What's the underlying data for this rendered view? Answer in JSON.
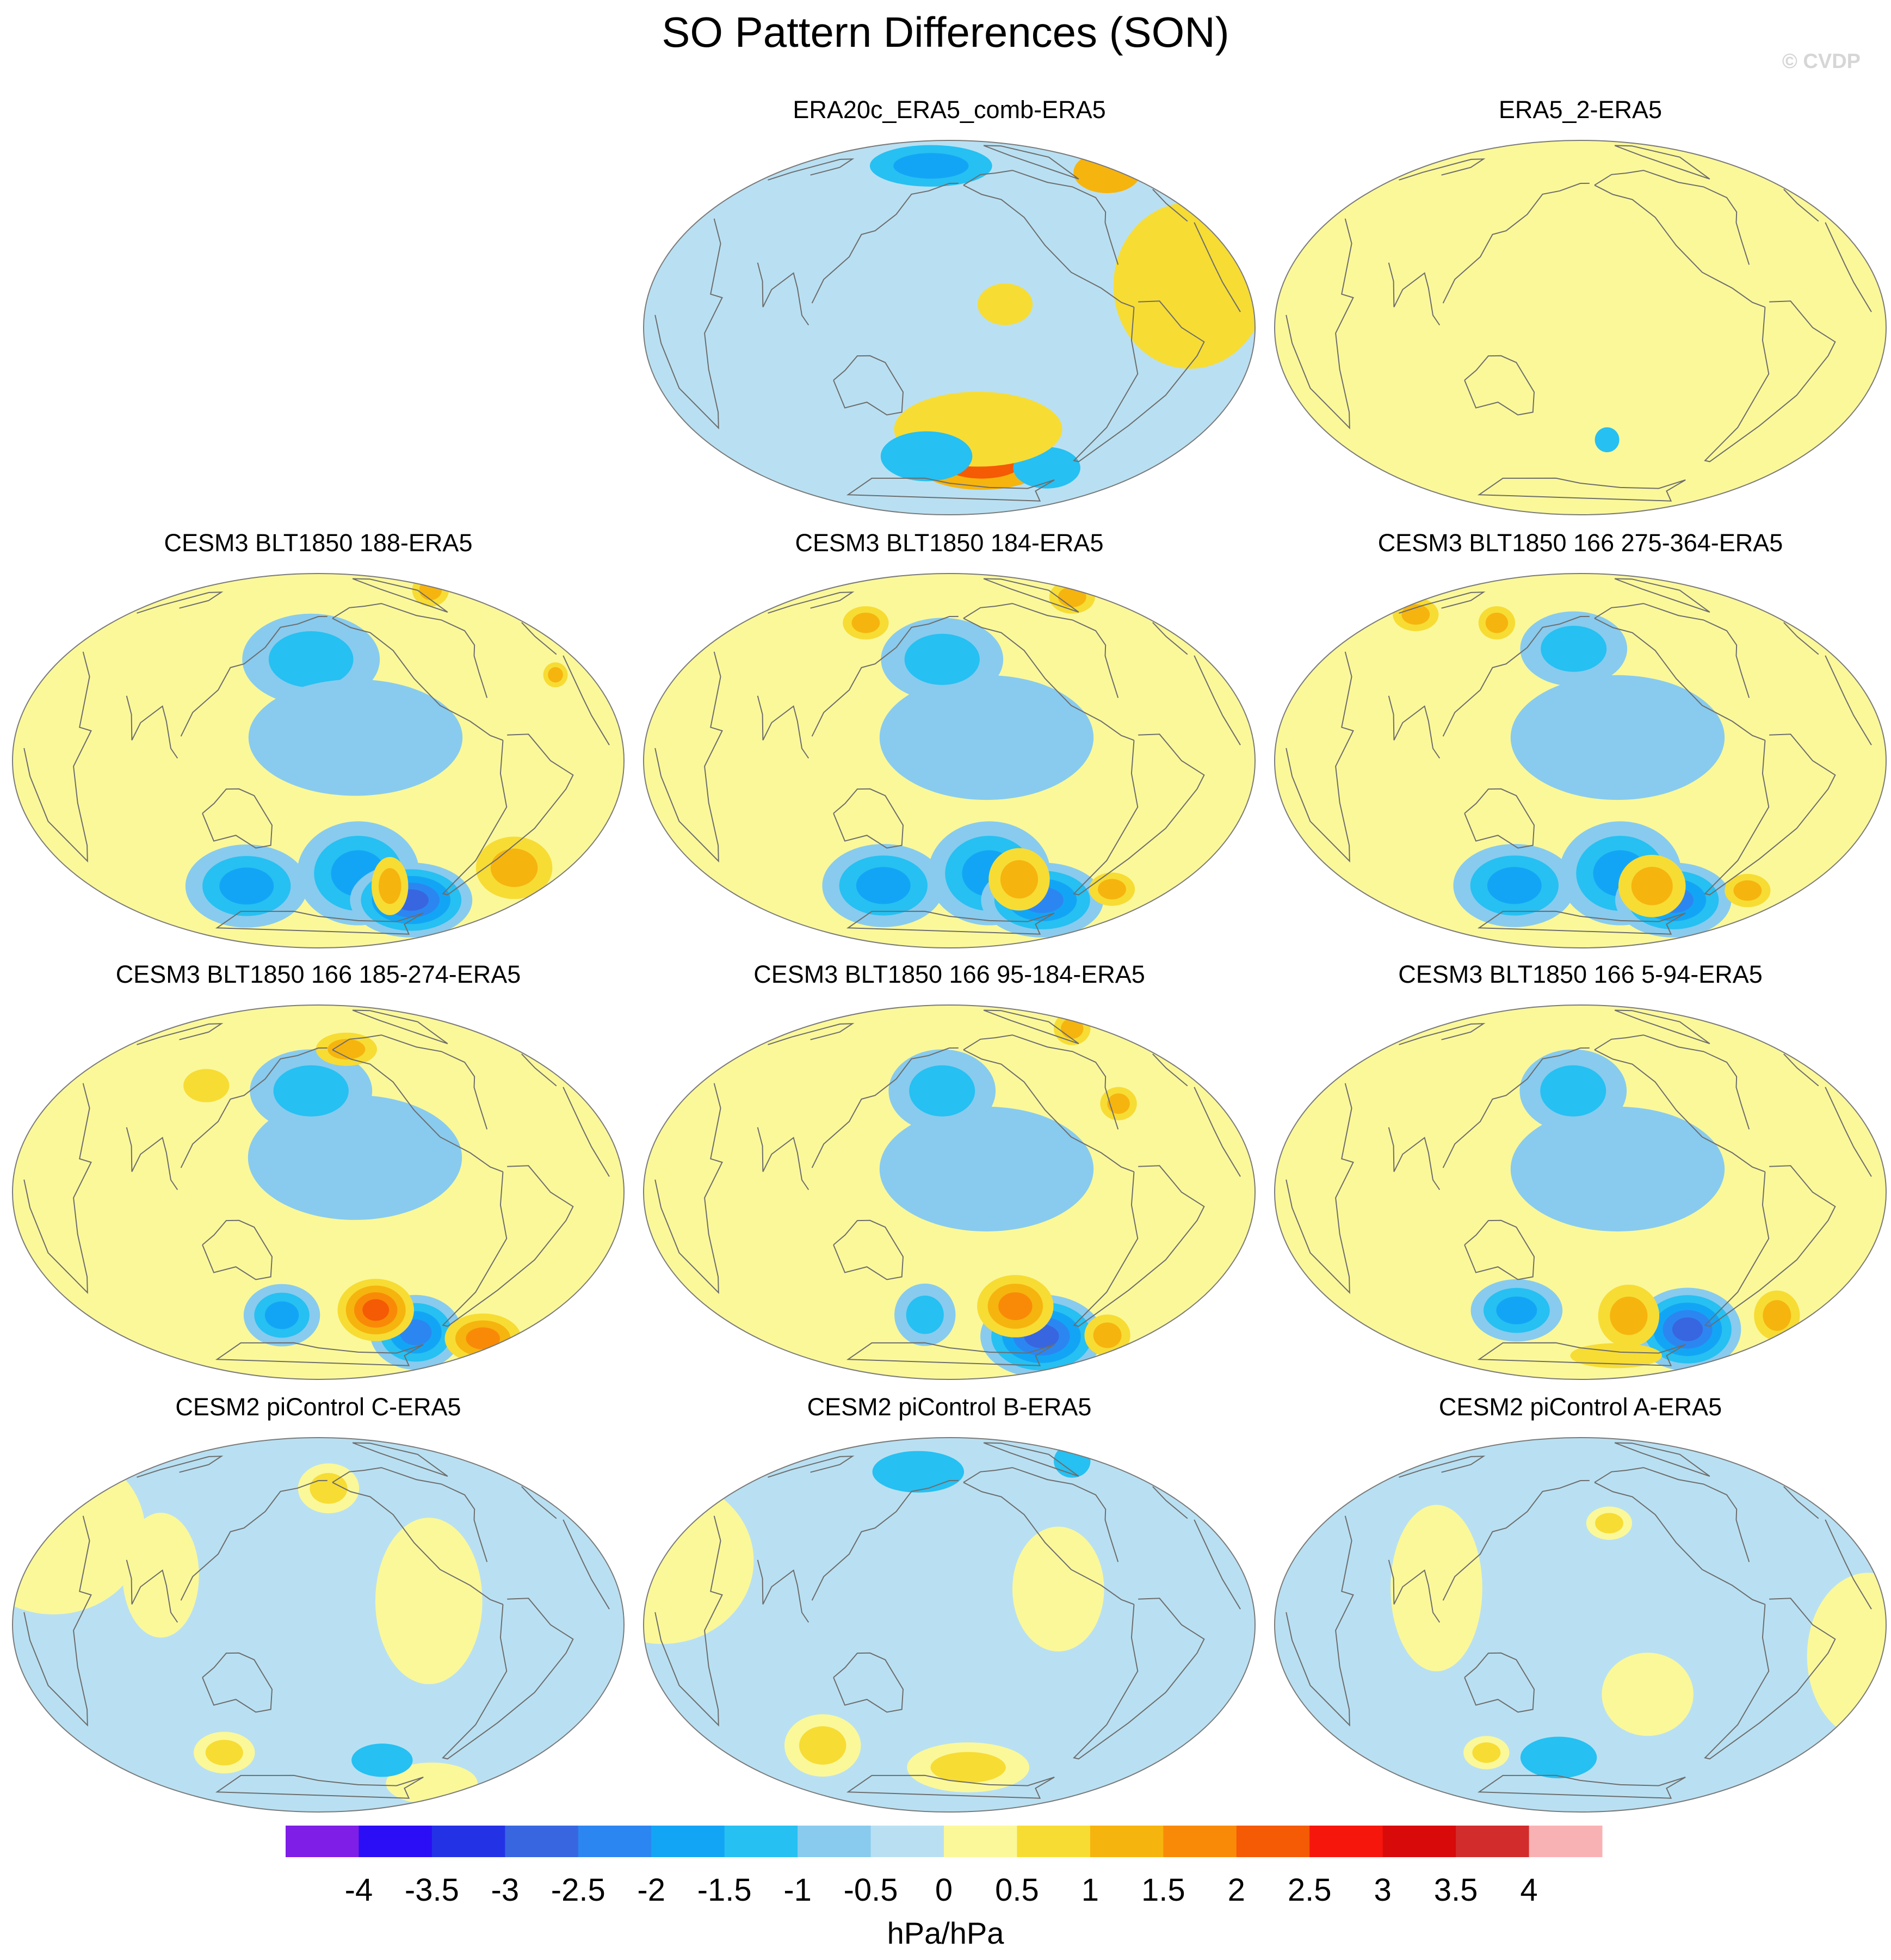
{
  "figure": {
    "title": "SO Pattern Differences (SON)",
    "watermark": "© CVDP",
    "units": "hPa/hPa"
  },
  "colors": {
    "scale": [
      "#7f1ee6",
      "#2b0ef5",
      "#2432e6",
      "#3866e0",
      "#2c86f2",
      "#13a5f5",
      "#26c0f2",
      "#88cbee",
      "#b9e0f2",
      "#fbf89a",
      "#f7dc34",
      "#f6b40e",
      "#f98a07",
      "#f55a05",
      "#f6160c",
      "#d80a0a",
      "#d22c2c",
      "#f9b2b4"
    ],
    "coast": "#6d6d6d"
  },
  "colorbar": {
    "ticks": [
      "-4",
      "-3.5",
      "-3",
      "-2.5",
      "-2",
      "-1.5",
      "-1",
      "-0.5",
      "0",
      "0.5",
      "1",
      "1.5",
      "2",
      "2.5",
      "3",
      "3.5",
      "4"
    ]
  },
  "panels": [
    {
      "title": "ERA20c_ERA5_comb-ERA5",
      "base": 8,
      "features": [
        {
          "lon": -150,
          "lat": -60,
          "rx": 45,
          "ry": 14,
          "levels": [
            1,
            2
          ]
        },
        {
          "lon": -85,
          "lat": -60,
          "rx": 22,
          "ry": 10,
          "levels": [
            -1
          ]
        },
        {
          "lon": -10,
          "lat": 58,
          "rx": 22,
          "ry": 10,
          "levels": [
            1
          ]
        },
        {
          "lon": 150,
          "lat": 75,
          "rx": 40,
          "ry": 10,
          "levels": [
            -1,
            -1.5
          ]
        },
        {
          "lon": -40,
          "lat": 15,
          "rx": 50,
          "ry": 40,
          "levels": [
            0.5
          ]
        },
        {
          "lon": -150,
          "lat": 10,
          "rx": 18,
          "ry": 10,
          "levels": [
            0.5
          ]
        },
        {
          "lon": -160,
          "lat": -45,
          "rx": 55,
          "ry": 18,
          "levels": [
            0.5
          ]
        },
        {
          "lon": 160,
          "lat": -58,
          "rx": 30,
          "ry": 12,
          "levels": [
            -1
          ]
        }
      ]
    },
    {
      "title": "ERA5_2-ERA5",
      "base": 9,
      "features": [
        {
          "lon": -130,
          "lat": -15,
          "rx": 45,
          "ry": 40,
          "levels": [
            0
          ]
        },
        {
          "lon": -60,
          "lat": 40,
          "rx": 35,
          "ry": 20,
          "levels": [
            0
          ]
        },
        {
          "lon": 130,
          "lat": 15,
          "rx": 30,
          "ry": 20,
          "levels": [
            0
          ]
        },
        {
          "lon": 30,
          "lat": -55,
          "rx": 50,
          "ry": 15,
          "levels": [
            0
          ]
        },
        {
          "lon": -160,
          "lat": -50,
          "rx": 8,
          "ry": 6,
          "levels": [
            -1
          ]
        },
        {
          "lon": 0,
          "lat": 40,
          "rx": 25,
          "ry": 20,
          "levels": [
            0
          ]
        }
      ]
    },
    {
      "title": "CESM3 BLT1850 188-ERA5",
      "base": 9,
      "features": [
        {
          "lon": -150,
          "lat": -50,
          "rx": 40,
          "ry": 25,
          "levels": [
            -0.5,
            -1,
            -1.5
          ]
        },
        {
          "lon": -90,
          "lat": -60,
          "rx": 40,
          "ry": 18,
          "levels": [
            -0.5,
            -1,
            -1.5,
            -2,
            -2.5
          ]
        },
        {
          "lon": 120,
          "lat": -55,
          "rx": 40,
          "ry": 20,
          "levels": [
            -0.5,
            -1,
            -1.5
          ]
        },
        {
          "lon": -120,
          "lat": -55,
          "rx": 12,
          "ry": 14,
          "levels": [
            0.5,
            1
          ]
        },
        {
          "lon": -40,
          "lat": -40,
          "rx": 25,
          "ry": 15,
          "levels": [
            0.5,
            1
          ]
        },
        {
          "lon": -10,
          "lat": 68,
          "rx": 12,
          "ry": 8,
          "levels": [
            0.5,
            1
          ]
        },
        {
          "lon": -25,
          "lat": 30,
          "rx": 8,
          "ry": 6,
          "levels": [
            0.5,
            1
          ]
        },
        {
          "lon": 175,
          "lat": 45,
          "rx": 45,
          "ry": 22,
          "levels": [
            -0.5,
            -1
          ]
        },
        {
          "lon": -160,
          "lat": 10,
          "rx": 70,
          "ry": 28,
          "levels": [
            -0.5
          ]
        }
      ]
    },
    {
      "title": "CESM3 BLT1850 184-ERA5",
      "base": 9,
      "features": [
        {
          "lon": -160,
          "lat": 10,
          "rx": 70,
          "ry": 30,
          "levels": [
            -0.5
          ]
        },
        {
          "lon": 175,
          "lat": 45,
          "rx": 40,
          "ry": 20,
          "levels": [
            -0.5,
            -1
          ]
        },
        {
          "lon": -150,
          "lat": -50,
          "rx": 40,
          "ry": 25,
          "levels": [
            -0.5,
            -1,
            -1.5
          ]
        },
        {
          "lon": -90,
          "lat": -60,
          "rx": 40,
          "ry": 18,
          "levels": [
            -0.5,
            -1,
            -1.5,
            -2
          ]
        },
        {
          "lon": 125,
          "lat": -55,
          "rx": 40,
          "ry": 20,
          "levels": [
            -0.5,
            -1,
            -1.5
          ]
        },
        {
          "lon": -125,
          "lat": -52,
          "rx": 20,
          "ry": 15,
          "levels": [
            0.5,
            1
          ]
        },
        {
          "lon": -45,
          "lat": -50,
          "rx": 15,
          "ry": 8,
          "levels": [
            0.5,
            1
          ]
        },
        {
          "lon": -20,
          "lat": 65,
          "rx": 15,
          "ry": 8,
          "levels": [
            0.5,
            1
          ]
        },
        {
          "lon": 100,
          "lat": 60,
          "rx": 15,
          "ry": 8,
          "levels": [
            0.5,
            1
          ]
        }
      ]
    },
    {
      "title": "CESM3 BLT1850 166 275-364-ERA5",
      "base": 9,
      "features": [
        {
          "lon": -160,
          "lat": 10,
          "rx": 70,
          "ry": 30,
          "levels": [
            -0.5
          ]
        },
        {
          "lon": 175,
          "lat": 50,
          "rx": 35,
          "ry": 18,
          "levels": [
            -0.5,
            -1
          ]
        },
        {
          "lon": -150,
          "lat": -50,
          "rx": 40,
          "ry": 25,
          "levels": [
            -0.5,
            -1,
            -1.5
          ]
        },
        {
          "lon": -90,
          "lat": -60,
          "rx": 38,
          "ry": 18,
          "levels": [
            -0.5,
            -1,
            -1.5,
            -2
          ]
        },
        {
          "lon": 125,
          "lat": -55,
          "rx": 40,
          "ry": 20,
          "levels": [
            -0.5,
            -1,
            -1.5
          ]
        },
        {
          "lon": -120,
          "lat": -55,
          "rx": 22,
          "ry": 15,
          "levels": [
            0.5,
            1
          ]
        },
        {
          "lon": -40,
          "lat": -50,
          "rx": 15,
          "ry": 8,
          "levels": [
            0.5,
            1
          ]
        },
        {
          "lon": 20,
          "lat": 55,
          "rx": 15,
          "ry": 8,
          "levels": [
            0.5,
            1
          ]
        },
        {
          "lon": 100,
          "lat": 60,
          "rx": 12,
          "ry": 8,
          "levels": [
            0.5,
            1
          ]
        }
      ]
    },
    {
      "title": "CESM3 BLT1850 166 185-274-ERA5",
      "base": 9,
      "features": [
        {
          "lon": -160,
          "lat": 15,
          "rx": 70,
          "ry": 30,
          "levels": [
            -0.5
          ]
        },
        {
          "lon": 175,
          "lat": 45,
          "rx": 40,
          "ry": 20,
          "levels": [
            -0.5,
            -1
          ]
        },
        {
          "lon": 150,
          "lat": -55,
          "rx": 25,
          "ry": 15,
          "levels": [
            -0.5,
            -1,
            -1.5
          ]
        },
        {
          "lon": -85,
          "lat": -60,
          "rx": 30,
          "ry": 18,
          "levels": [
            -0.5,
            -1,
            -1.5,
            -2
          ]
        },
        {
          "lon": -135,
          "lat": -52,
          "rx": 25,
          "ry": 15,
          "levels": [
            0.5,
            1,
            1.5,
            2
          ]
        },
        {
          "lon": -20,
          "lat": -55,
          "rx": 25,
          "ry": 12,
          "levels": [
            0.5,
            1,
            1.5
          ]
        },
        {
          "lon": -150,
          "lat": 65,
          "rx": 20,
          "ry": 8,
          "levels": [
            0.5,
            1
          ]
        },
        {
          "lon": 100,
          "lat": 45,
          "rx": 15,
          "ry": 8,
          "levels": [
            0.5
          ]
        }
      ]
    },
    {
      "title": "CESM3 BLT1850 166 95-184-ERA5",
      "base": 9,
      "features": [
        {
          "lon": -160,
          "lat": 10,
          "rx": 70,
          "ry": 30,
          "levels": [
            -0.5
          ]
        },
        {
          "lon": 175,
          "lat": 45,
          "rx": 35,
          "ry": 20,
          "levels": [
            -0.5,
            -1
          ]
        },
        {
          "lon": 160,
          "lat": -55,
          "rx": 20,
          "ry": 15,
          "levels": [
            -0.5,
            -1
          ]
        },
        {
          "lon": -85,
          "lat": -62,
          "rx": 40,
          "ry": 20,
          "levels": [
            -0.5,
            -1,
            -1.5,
            -2,
            -2.5
          ]
        },
        {
          "lon": -130,
          "lat": -50,
          "rx": 25,
          "ry": 15,
          "levels": [
            0.5,
            1,
            1.5
          ]
        },
        {
          "lon": -30,
          "lat": -55,
          "rx": 15,
          "ry": 10,
          "levels": [
            0.5,
            1
          ]
        },
        {
          "lon": -20,
          "lat": 65,
          "rx": 12,
          "ry": 8,
          "levels": [
            0.5,
            1
          ]
        },
        {
          "lon": -70,
          "lat": 35,
          "rx": 12,
          "ry": 8,
          "levels": [
            0.5,
            1
          ]
        }
      ]
    },
    {
      "title": "CESM3 BLT1850 166 5-94-ERA5",
      "base": 9,
      "features": [
        {
          "lon": -160,
          "lat": 10,
          "rx": 70,
          "ry": 30,
          "levels": [
            -0.5
          ]
        },
        {
          "lon": 175,
          "lat": 45,
          "rx": 35,
          "ry": 20,
          "levels": [
            -0.5,
            -1
          ]
        },
        {
          "lon": 130,
          "lat": -52,
          "rx": 30,
          "ry": 15,
          "levels": [
            -0.5,
            -1,
            -1.5
          ]
        },
        {
          "lon": -80,
          "lat": -58,
          "rx": 35,
          "ry": 20,
          "levels": [
            -0.5,
            -1,
            -1.5,
            -2,
            -2.5
          ]
        },
        {
          "lon": -140,
          "lat": -55,
          "rx": 20,
          "ry": 15,
          "levels": [
            0.5,
            1
          ]
        },
        {
          "lon": -25,
          "lat": -45,
          "rx": 15,
          "ry": 12,
          "levels": [
            0.5,
            1
          ]
        },
        {
          "lon": -120,
          "lat": -75,
          "rx": 30,
          "ry": 6,
          "levels": [
            0.5
          ]
        }
      ]
    },
    {
      "title": "CESM2 piControl C-ERA5",
      "base": 8,
      "features": [
        {
          "lon": -170,
          "lat": 62,
          "rx": 20,
          "ry": 12,
          "levels": [
            0,
            0.5
          ]
        },
        {
          "lon": 0,
          "lat": 30,
          "rx": 60,
          "ry": 40,
          "levels": [
            0
          ]
        },
        {
          "lon": -120,
          "lat": 10,
          "rx": 35,
          "ry": 40,
          "levels": [
            0
          ]
        },
        {
          "lon": 90,
          "lat": 20,
          "rx": 25,
          "ry": 30,
          "levels": [
            0
          ]
        },
        {
          "lon": 100,
          "lat": -55,
          "rx": 20,
          "ry": 10,
          "levels": [
            0,
            0.5
          ]
        },
        {
          "lon": -40,
          "lat": -65,
          "rx": 30,
          "ry": 10,
          "levels": [
            0
          ]
        },
        {
          "lon": -120,
          "lat": -60,
          "rx": 20,
          "ry": 8,
          "levels": [
            -1
          ]
        }
      ]
    },
    {
      "title": "CESM2 piControl B-ERA5",
      "base": 8,
      "features": [
        {
          "lon": 80,
          "lat": -50,
          "rx": 25,
          "ry": 15,
          "levels": [
            0,
            0.5
          ]
        },
        {
          "lon": 0,
          "lat": 20,
          "rx": 60,
          "ry": 40,
          "levels": [
            0
          ]
        },
        {
          "lon": -160,
          "lat": -65,
          "rx": 40,
          "ry": 12,
          "levels": [
            0,
            0.5
          ]
        },
        {
          "lon": -120,
          "lat": 15,
          "rx": 30,
          "ry": 30,
          "levels": [
            0
          ]
        },
        {
          "lon": 140,
          "lat": 70,
          "rx": 30,
          "ry": 10,
          "levels": [
            -1
          ]
        },
        {
          "lon": -20,
          "lat": 65,
          "rx": 12,
          "ry": 8,
          "levels": [
            -1
          ]
        }
      ]
    },
    {
      "title": "CESM2 piControl A-ERA5",
      "base": 8,
      "features": [
        {
          "lon": -160,
          "lat": 45,
          "rx": 15,
          "ry": 8,
          "levels": [
            0,
            0.5
          ]
        },
        {
          "lon": 100,
          "lat": 15,
          "rx": 30,
          "ry": 40,
          "levels": [
            0
          ]
        },
        {
          "lon": -10,
          "lat": -10,
          "rx": 40,
          "ry": 40,
          "levels": [
            0
          ]
        },
        {
          "lon": -140,
          "lat": -30,
          "rx": 30,
          "ry": 20,
          "levels": [
            0
          ]
        },
        {
          "lon": 160,
          "lat": -60,
          "rx": 25,
          "ry": 10,
          "levels": [
            -1
          ]
        },
        {
          "lon": 100,
          "lat": -55,
          "rx": 15,
          "ry": 8,
          "levels": [
            0,
            0.5
          ]
        }
      ]
    }
  ]
}
